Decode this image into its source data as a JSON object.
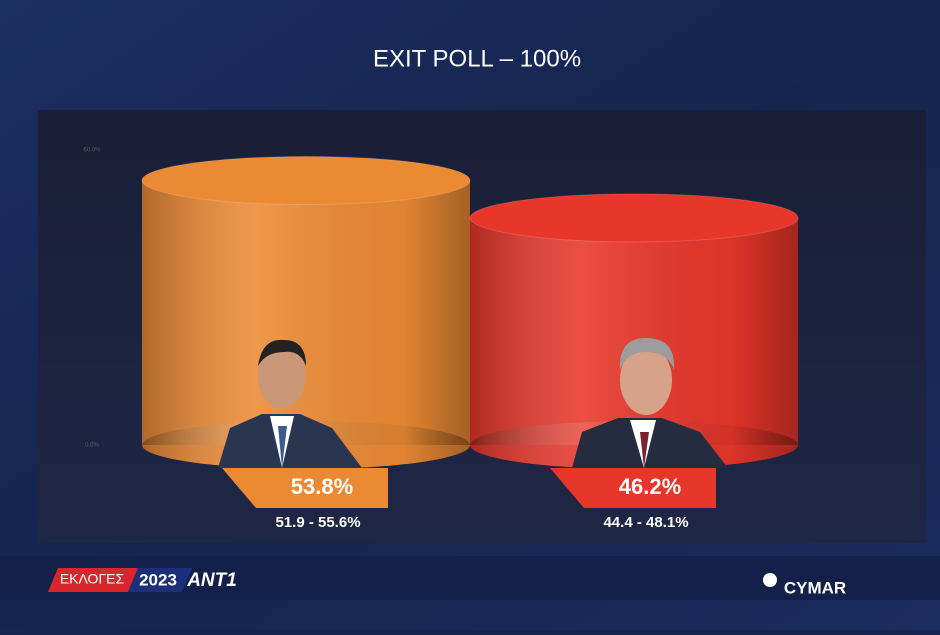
{
  "chart_data": {
    "type": "bar",
    "title": "EXIT POLL – 100%",
    "categories": [
      null,
      null
    ],
    "values": [
      53.8,
      46.2
    ],
    "value_labels": [
      "53.8%",
      "46.2%"
    ],
    "interval_labels": [
      "51.9 - 55.6%",
      "44.4 - 48.1%"
    ],
    "colors": [
      "#ec8a34",
      "#e8362a"
    ],
    "ylim": [
      0,
      60
    ],
    "yticks": [
      {
        "value": 0,
        "label": "0.0%"
      },
      {
        "value": 60,
        "label": "60.0%"
      }
    ]
  },
  "footer": {
    "tag": "ΕΚΛΟΓΕΣ",
    "year": "2023",
    "channel": "ANT1",
    "pollster": "CYMAR"
  }
}
